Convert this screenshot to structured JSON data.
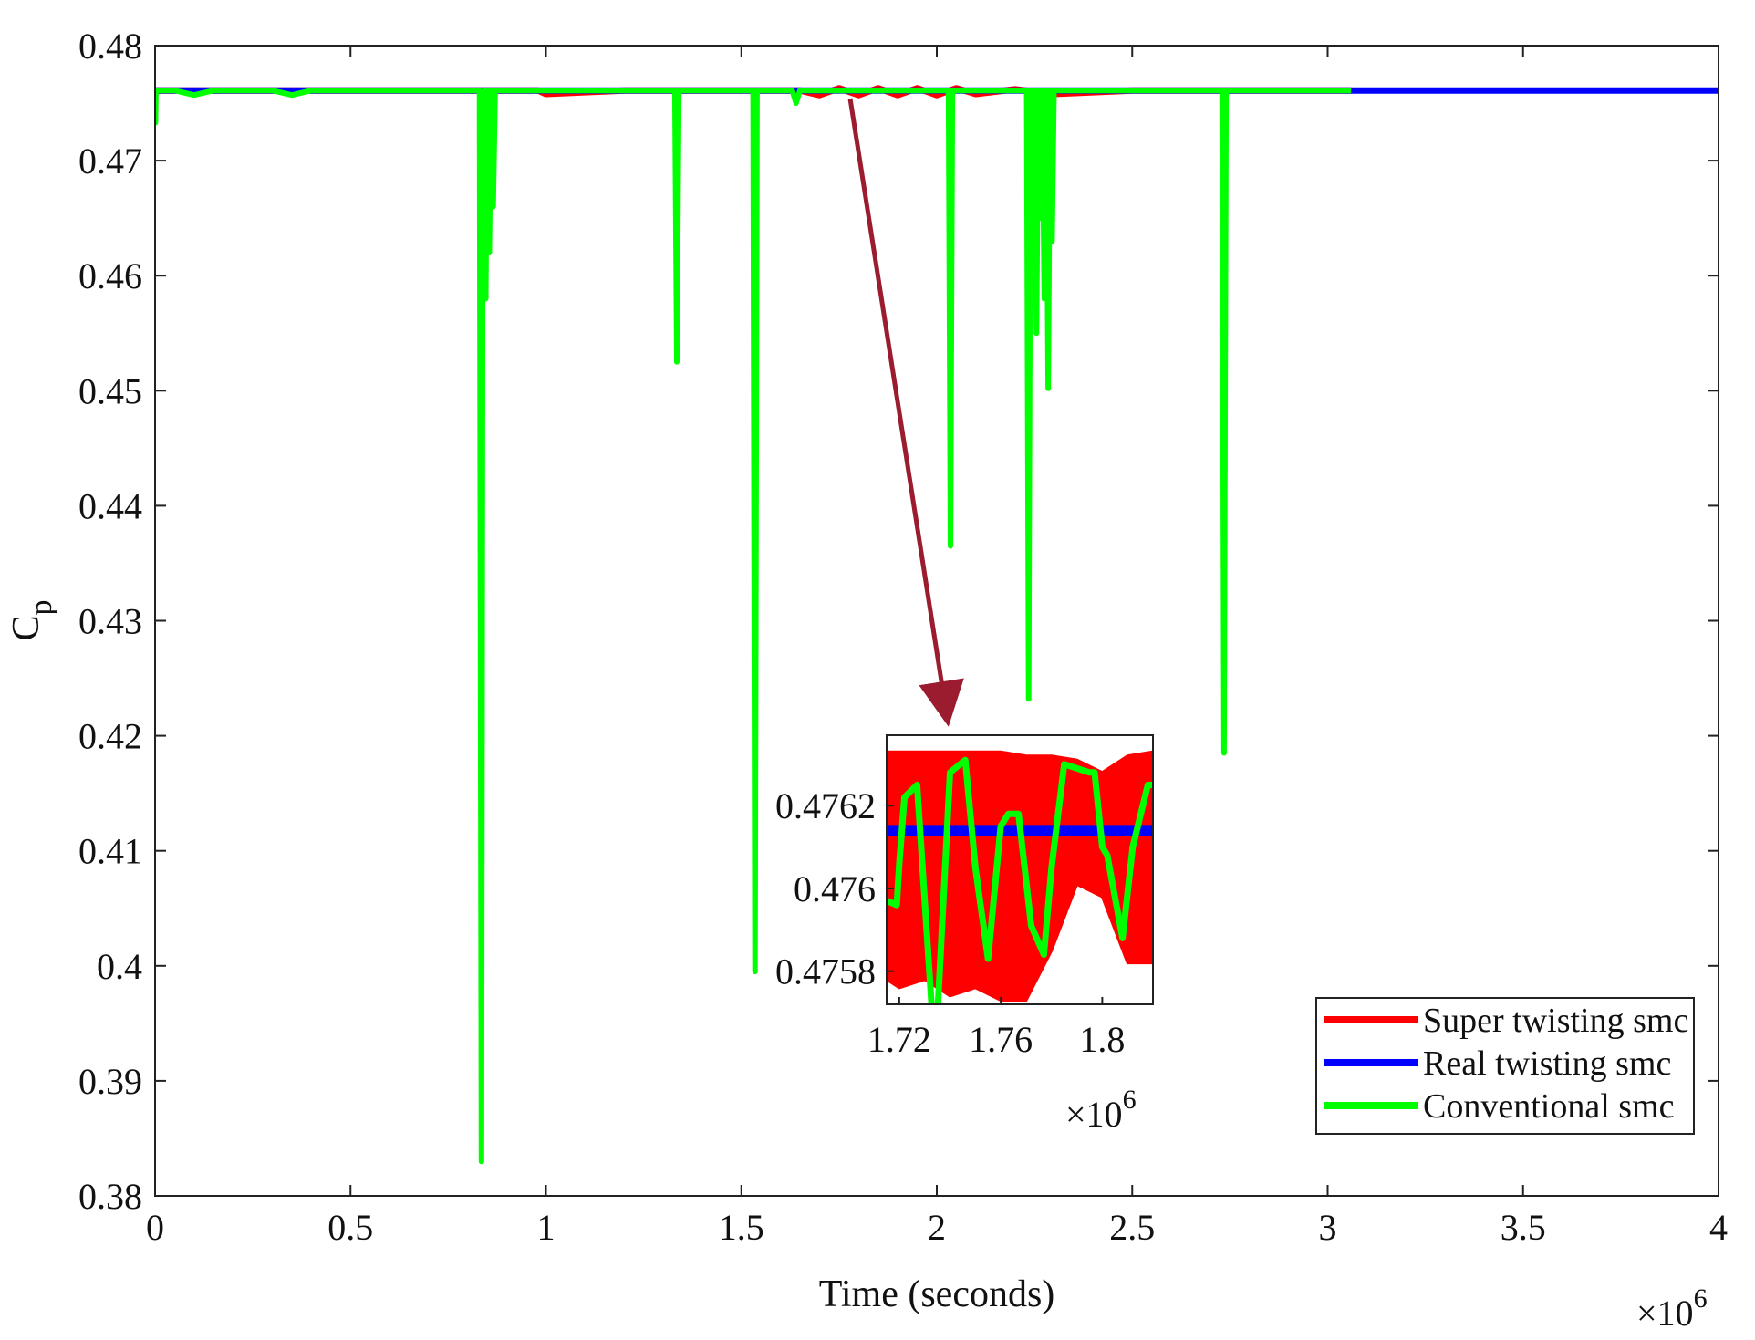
{
  "chart_data": [
    {
      "type": "line",
      "xlabel": "Time (seconds)",
      "ylabel": "C",
      "ylabel_subscript": "p",
      "x_multiplier_base": "×10",
      "x_multiplier_exp": "6",
      "xlim": [
        0,
        4
      ],
      "ylim": [
        0.38,
        0.48
      ],
      "x_ticks": [
        0,
        0.5,
        1,
        1.5,
        2,
        2.5,
        3,
        3.5,
        4
      ],
      "x_tick_labels": [
        "0",
        "0.5",
        "1",
        "1.5",
        "2",
        "2.5",
        "3",
        "3.5",
        "4"
      ],
      "y_ticks": [
        0.38,
        0.39,
        0.4,
        0.41,
        0.42,
        0.43,
        0.44,
        0.45,
        0.46,
        0.47,
        0.48
      ],
      "y_tick_labels": [
        "0.38",
        "0.39",
        "0.4",
        "0.41",
        "0.42",
        "0.43",
        "0.44",
        "0.45",
        "0.46",
        "0.47",
        "0.48"
      ],
      "legend_position": "bottom-right",
      "series": [
        {
          "name": "Super twisting smc",
          "color": "#ff0000",
          "x": [
            0,
            0.2,
            0.5,
            0.8,
            0.98,
            1.0,
            1.2,
            1.5,
            1.65,
            1.7,
            1.75,
            1.8,
            1.85,
            1.9,
            1.95,
            2.0,
            2.05,
            2.1,
            2.2,
            2.3,
            2.5,
            2.8,
            3.06
          ],
          "y": [
            0.4761,
            0.4761,
            0.4761,
            0.4761,
            0.4761,
            0.4758,
            0.4761,
            0.4761,
            0.4761,
            0.4757,
            0.4763,
            0.4757,
            0.4763,
            0.4757,
            0.4763,
            0.4757,
            0.4763,
            0.4758,
            0.4762,
            0.4758,
            0.4761,
            0.4761,
            0.4761
          ]
        },
        {
          "name": "Real twisting smc",
          "color": "#0000ff",
          "x": [
            0,
            1.0,
            2.0,
            3.0,
            3.5,
            4.0
          ],
          "y": [
            0.4761,
            0.4761,
            0.4761,
            0.4761,
            0.4761,
            0.4761
          ]
        },
        {
          "name": "Conventional smc",
          "color": "#00ff00",
          "x": [
            0,
            0.001,
            0.002,
            0.05,
            0.1,
            0.15,
            0.2,
            0.3,
            0.35,
            0.4,
            0.45,
            0.5,
            0.6,
            0.7,
            0.8,
            0.83,
            0.835,
            0.838,
            0.842,
            0.846,
            0.85,
            0.855,
            0.86,
            0.865,
            0.87,
            0.9,
            1.0,
            1.1,
            1.2,
            1.3,
            1.33,
            1.335,
            1.34,
            1.345,
            1.35,
            1.4,
            1.5,
            1.53,
            1.535,
            1.54,
            1.545,
            1.55,
            1.6,
            1.63,
            1.64,
            1.65,
            1.7,
            1.8,
            1.9,
            2.0,
            2.03,
            2.035,
            2.04,
            2.045,
            2.05,
            2.1,
            2.2,
            2.23,
            2.235,
            2.24,
            2.245,
            2.25,
            2.255,
            2.26,
            2.265,
            2.27,
            2.275,
            2.28,
            2.285,
            2.29,
            2.295,
            2.3,
            2.35,
            2.4,
            2.5,
            2.6,
            2.7,
            2.73,
            2.735,
            2.74,
            2.745,
            2.75,
            2.8,
            2.9,
            3.0,
            3.06
          ],
          "y": [
            0.4761,
            0.4733,
            0.4761,
            0.4761,
            0.4757,
            0.4761,
            0.4761,
            0.4761,
            0.4757,
            0.4761,
            0.4761,
            0.4761,
            0.4761,
            0.4761,
            0.4761,
            0.4761,
            0.383,
            0.46,
            0.4761,
            0.458,
            0.4761,
            0.462,
            0.4761,
            0.466,
            0.4761,
            0.4761,
            0.4761,
            0.4761,
            0.4761,
            0.4761,
            0.4761,
            0.4525,
            0.4761,
            0.4761,
            0.4761,
            0.4761,
            0.4761,
            0.4761,
            0.3995,
            0.4761,
            0.4761,
            0.4761,
            0.4761,
            0.4761,
            0.475,
            0.4761,
            0.4761,
            0.4761,
            0.4761,
            0.4761,
            0.4761,
            0.4365,
            0.4761,
            0.4761,
            0.4761,
            0.4761,
            0.4761,
            0.4761,
            0.4232,
            0.4761,
            0.46,
            0.4761,
            0.455,
            0.4761,
            0.465,
            0.4761,
            0.458,
            0.4761,
            0.4502,
            0.4761,
            0.463,
            0.4761,
            0.4761,
            0.4761,
            0.4761,
            0.4761,
            0.4761,
            0.4761,
            0.4185,
            0.4761,
            0.4761,
            0.4761,
            0.4761,
            0.4761,
            0.4761,
            0.4761
          ]
        }
      ]
    },
    {
      "type": "line",
      "role": "inset",
      "xlim": [
        1.715,
        1.82
      ],
      "ylim": [
        0.47572,
        0.47637
      ],
      "x_ticks": [
        1.72,
        1.76,
        1.8
      ],
      "x_tick_labels": [
        "1.72",
        "1.76",
        "1.8"
      ],
      "y_ticks": [
        0.4758,
        0.476,
        0.4762
      ],
      "y_tick_labels": [
        "0.4758",
        "0.476",
        "0.4762"
      ],
      "x_multiplier_base": "×10",
      "x_multiplier_exp": "6",
      "super_twisting_envelope": {
        "x": [
          1.715,
          1.72,
          1.73,
          1.74,
          1.75,
          1.76,
          1.77,
          1.78,
          1.79,
          1.8,
          1.81,
          1.82
        ],
        "upper": [
          0.47633,
          0.47633,
          0.47633,
          0.47633,
          0.47633,
          0.47633,
          0.47632,
          0.47632,
          0.47631,
          0.47628,
          0.47632,
          0.47633
        ],
        "lower": [
          0.47578,
          0.47576,
          0.47578,
          0.47574,
          0.47576,
          0.47573,
          0.47573,
          0.47585,
          0.47601,
          0.47598,
          0.47582,
          0.47582
        ]
      },
      "series": [
        {
          "name": "Real twisting smc",
          "color": "#0000ff",
          "x": [
            1.715,
            1.82
          ],
          "y": [
            0.47614,
            0.47614
          ]
        },
        {
          "name": "Conventional smc",
          "color": "#00ff00",
          "x": [
            1.715,
            1.719,
            1.72,
            1.722,
            1.727,
            1.733,
            1.735,
            1.74,
            1.746,
            1.75,
            1.755,
            1.76,
            1.763,
            1.767,
            1.772,
            1.777,
            1.78,
            1.785,
            1.795,
            1.797,
            1.8,
            1.802,
            1.808,
            1.812,
            1.818,
            1.82
          ],
          "y": [
            0.47597,
            0.47596,
            0.47606,
            0.47622,
            0.47625,
            0.47569,
            0.47569,
            0.47628,
            0.47631,
            0.47605,
            0.47583,
            0.47615,
            0.47618,
            0.47618,
            0.47591,
            0.47584,
            0.47605,
            0.4763,
            0.47628,
            0.47628,
            0.4761,
            0.47608,
            0.47588,
            0.4761,
            0.47625,
            0.47625
          ]
        }
      ]
    }
  ]
}
